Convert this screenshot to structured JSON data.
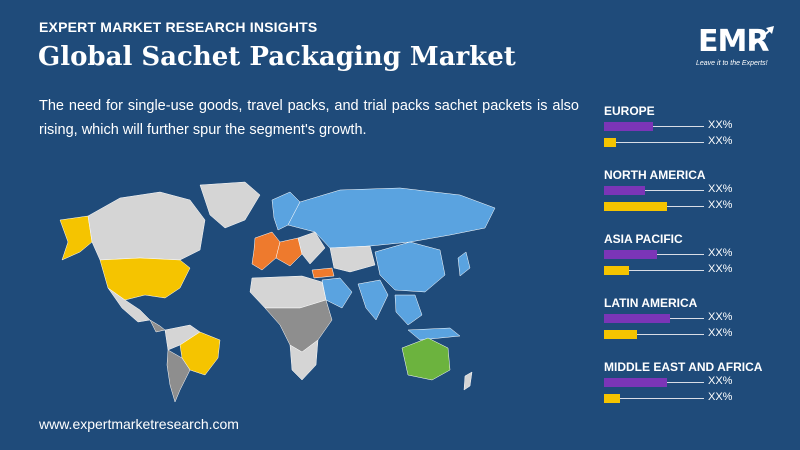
{
  "header": {
    "kicker": "EXPERT MARKET RESEARCH INSIGHTS",
    "title": "Global Sachet Packaging Market",
    "description": "The need for single-use goods, travel packs, and trial packs sachet packets is also rising, which will further spur the segment's growth."
  },
  "logo": {
    "text": "EMR",
    "tagline": "Leave it to the Experts!"
  },
  "footer": {
    "url": "www.expertmarketresearch.com"
  },
  "colors": {
    "background": "#1f4b7a",
    "purple_bar": "#7b35b7",
    "yellow_bar": "#f5c400",
    "map_blue": "#5aa3e0",
    "map_orange": "#ee7a2d",
    "map_yellow": "#f5c400",
    "map_green": "#6cb33e",
    "map_grey": "#d5d5d5",
    "map_darkgrey": "#8e8e8e"
  },
  "chart_data": {
    "type": "bar",
    "orientation": "horizontal",
    "categories": [
      "EUROPE",
      "NORTH AMERICA",
      "ASIA PACIFIC",
      "LATIN AMERICA",
      "MIDDLE EAST AND AFRICA"
    ],
    "series": [
      {
        "values": [
          0.6,
          0.5,
          0.65,
          0.8,
          0.77
        ],
        "label": [
          "XX%",
          "XX%",
          "XX%",
          "XX%",
          "XX%"
        ]
      },
      {
        "values": [
          0.15,
          0.77,
          0.3,
          0.4,
          0.2
        ],
        "label": [
          "XX%",
          "XX%",
          "XX%",
          "XX%",
          "XX%"
        ]
      }
    ],
    "xlim": [
      0,
      1
    ]
  }
}
